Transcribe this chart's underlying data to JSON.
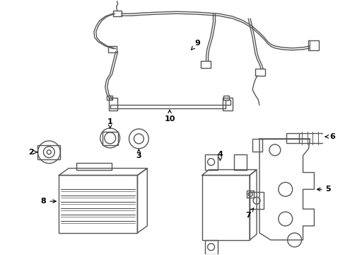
{
  "background_color": "#ffffff",
  "line_color": "#555555",
  "label_color": "#000000",
  "label_fontsize": 8,
  "figsize": [
    4.89,
    3.6
  ],
  "dpi": 100
}
